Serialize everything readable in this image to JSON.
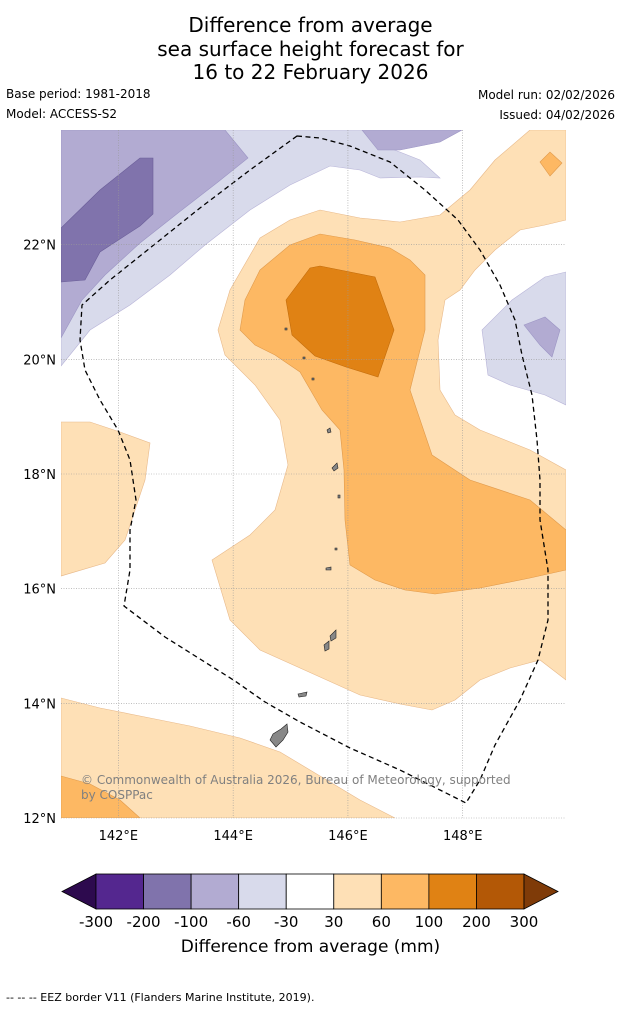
{
  "title": {
    "line1": "Difference from average",
    "line2": "sea surface height forecast for",
    "line3": "16 to 22 February 2026"
  },
  "meta": {
    "base_period": "Base period: 1981-2018",
    "model": "Model: ACCESS-S2",
    "model_run": "Model run: 02/02/2026",
    "issued": "Issued: 04/02/2026"
  },
  "map": {
    "lat_labels": [
      "22°N",
      "20°N",
      "18°N",
      "16°N",
      "14°N",
      "12°N"
    ],
    "lon_labels": [
      "142°E",
      "144°E",
      "146°E",
      "148°E"
    ],
    "lat_values": [
      22,
      20,
      18,
      16,
      14,
      12
    ],
    "lon_values": [
      142,
      144,
      146,
      148
    ],
    "lat_range": [
      12,
      24
    ],
    "lon_range": [
      141,
      149.8
    ],
    "copyright_line1": "© Commonwealth of Australia 2026, Bureau of Meteorology, supported",
    "copyright_line2": "by COSPPac"
  },
  "colorbar": {
    "ticks": [
      "-300",
      "-200",
      "-100",
      "-60",
      "-30",
      "30",
      "60",
      "100",
      "200",
      "300"
    ],
    "colors": [
      "#2d0a4e",
      "#54278f",
      "#8073ac",
      "#b2abd2",
      "#d8daeb",
      "#ffffff",
      "#fee0b6",
      "#fdb863",
      "#e08214",
      "#b35806",
      "#7f3b08"
    ],
    "label": "Difference from average (mm)"
  },
  "footnote": "-- -- -- EEZ border V11 (Flanders Marine Institute, 2019)."
}
